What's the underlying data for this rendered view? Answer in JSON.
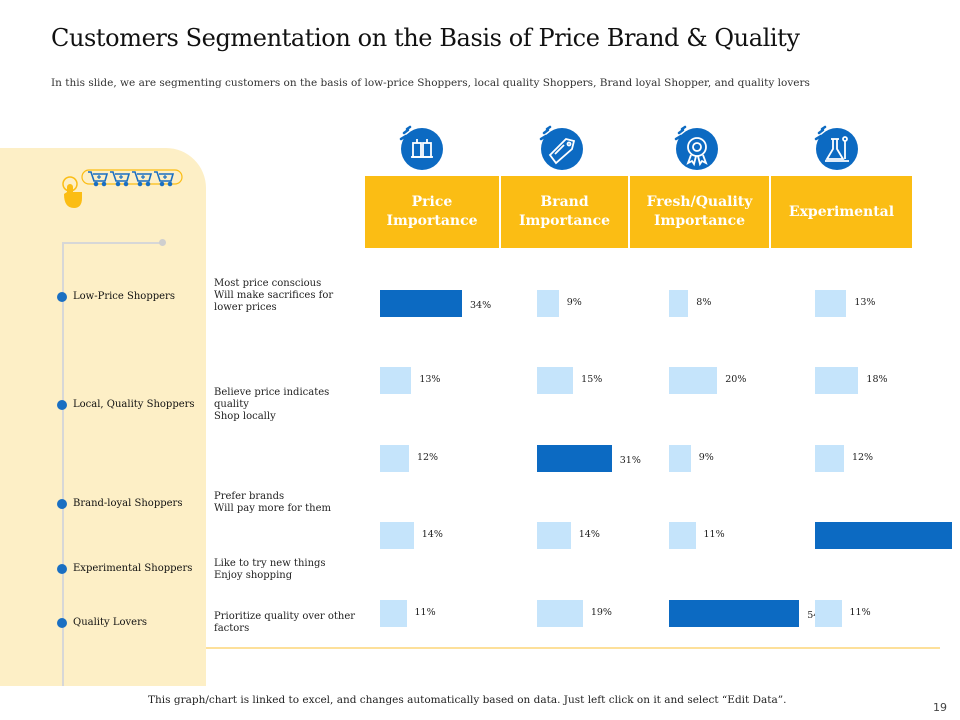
{
  "title": "Customers Segmentation on the Basis of Price Brand & Quality",
  "subtitle": "In this slide, we are segmenting customers on the basis of low-price Shoppers, local quality Shoppers, Brand loyal Shopper, and quality lovers",
  "segments": [
    {
      "label": "Low-Price Shoppers",
      "desc": [
        "Most price conscious",
        "Will make sacrifices for",
        "lower prices"
      ]
    },
    {
      "label": "Local, Quality Shoppers",
      "desc": [
        "Believe price indicates",
        "quality",
        "Shop locally"
      ]
    },
    {
      "label": "Brand-loyal Shoppers",
      "desc": [
        "Prefer brands",
        "Will pay more for them"
      ]
    },
    {
      "label": "Experimental Shoppers",
      "desc": [
        "Like to try new things",
        "Enjoy shopping"
      ]
    },
    {
      "label": "Quality Lovers",
      "desc": [
        "Prioritize quality over other",
        "factors"
      ]
    }
  ],
  "headers": [
    {
      "line1": "Price",
      "line2": "Importance",
      "icon": "price-tag-icon"
    },
    {
      "line1": "Brand",
      "line2": "Importance",
      "icon": "brand-tag-icon"
    },
    {
      "line1": "Fresh/Quality",
      "line2": "Importance",
      "icon": "quality-badge-icon"
    },
    {
      "line1": "Experimental",
      "line2": "",
      "icon": "lab-flask-icon"
    }
  ],
  "chart_data": {
    "type": "bar",
    "categories": [
      "Price Importance",
      "Brand Importance",
      "Fresh/Quality Importance",
      "Experimental"
    ],
    "series": [
      {
        "name": "Low-Price Shoppers",
        "values": [
          34,
          9,
          8,
          13
        ]
      },
      {
        "name": "Local, Quality Shoppers",
        "values": [
          13,
          15,
          20,
          18
        ]
      },
      {
        "name": "Brand-loyal Shoppers",
        "values": [
          12,
          31,
          9,
          12
        ]
      },
      {
        "name": "Experimental Shoppers",
        "values": [
          14,
          14,
          11,
          57
        ]
      },
      {
        "name": "Quality Lovers",
        "values": [
          11,
          19,
          54,
          11
        ]
      }
    ],
    "highlight": [
      [
        0,
        0
      ],
      [
        2,
        1
      ],
      [
        4,
        2
      ],
      [
        3,
        3
      ]
    ],
    "unit": "%",
    "colors": {
      "highlight": "#0c6ac2",
      "normal": "#c5e4fb"
    }
  },
  "footer": "This graph/chart is linked to excel, and changes automatically based on data. Just left click on it and select “Edit Data”.",
  "page_number": "19",
  "colors": {
    "accent": "#fbbd14",
    "panel": "#fdefc6",
    "blue": "#1a6fc2"
  }
}
